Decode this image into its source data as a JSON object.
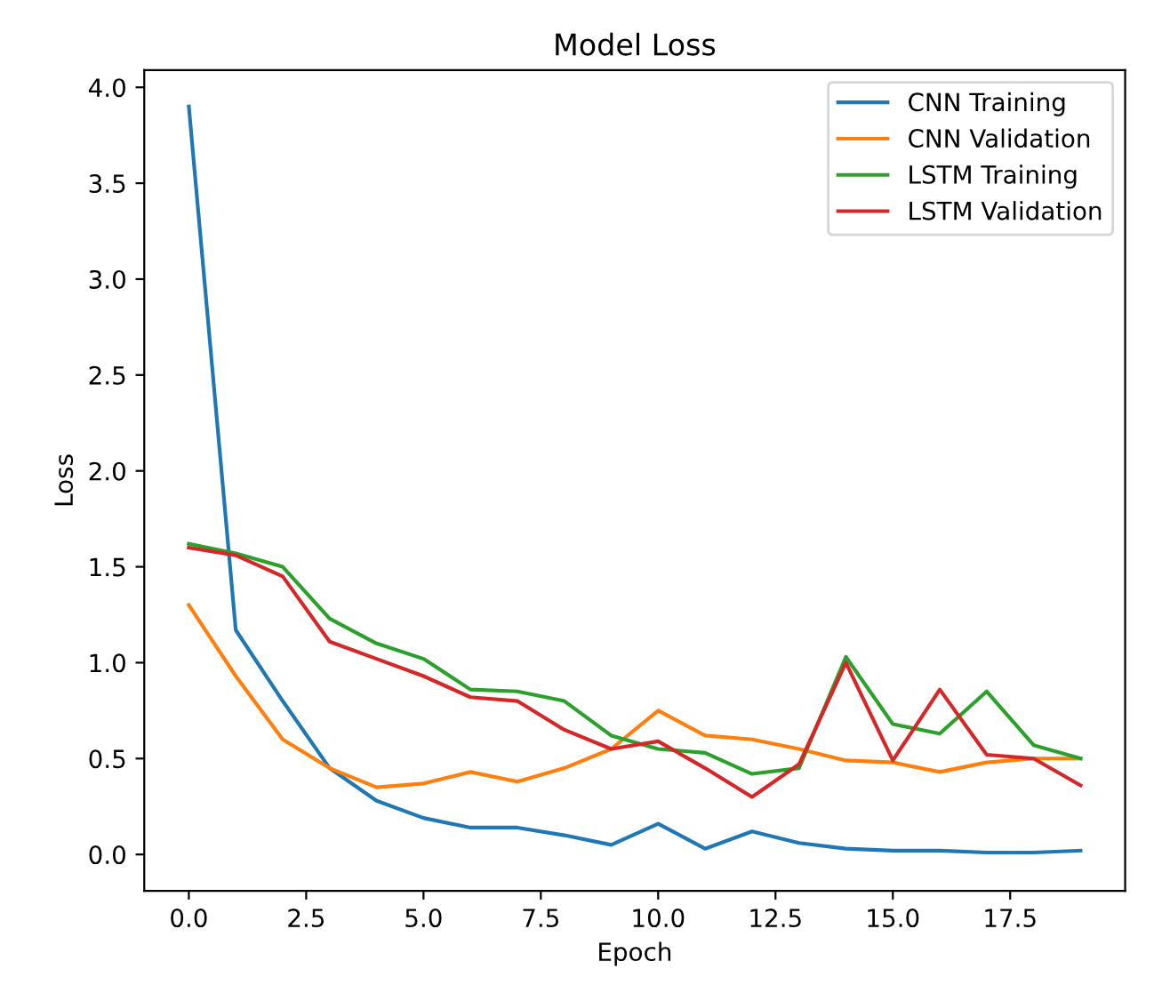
{
  "chart_data": {
    "type": "line",
    "title": "Model Loss",
    "xlabel": "Epoch",
    "ylabel": "Loss",
    "x": [
      0,
      1,
      2,
      3,
      4,
      5,
      6,
      7,
      8,
      9,
      10,
      11,
      12,
      13,
      14,
      15,
      16,
      17,
      18,
      19
    ],
    "series": [
      {
        "name": "CNN Training",
        "color": "#1f77b4",
        "values": [
          3.9,
          1.17,
          0.8,
          0.45,
          0.28,
          0.19,
          0.14,
          0.14,
          0.1,
          0.05,
          0.16,
          0.03,
          0.12,
          0.06,
          0.03,
          0.02,
          0.02,
          0.01,
          0.01,
          0.02
        ]
      },
      {
        "name": "CNN Validation",
        "color": "#ff7f0e",
        "values": [
          1.3,
          0.93,
          0.6,
          0.45,
          0.35,
          0.37,
          0.43,
          0.38,
          0.45,
          0.55,
          0.75,
          0.62,
          0.6,
          0.55,
          0.49,
          0.48,
          0.43,
          0.48,
          0.5,
          0.5
        ]
      },
      {
        "name": "LSTM Training",
        "color": "#2ca02c",
        "values": [
          1.62,
          1.57,
          1.5,
          1.23,
          1.1,
          1.02,
          0.86,
          0.85,
          0.8,
          0.62,
          0.55,
          0.53,
          0.42,
          0.45,
          1.03,
          0.68,
          0.63,
          0.85,
          0.57,
          0.5
        ]
      },
      {
        "name": "LSTM Validation",
        "color": "#d62728",
        "values": [
          1.6,
          1.56,
          1.45,
          1.11,
          1.02,
          0.93,
          0.82,
          0.8,
          0.65,
          0.55,
          0.59,
          0.45,
          0.3,
          0.47,
          1.0,
          0.49,
          0.86,
          0.52,
          0.5,
          0.36
        ]
      }
    ],
    "xlim": [
      -0.95,
      19.95
    ],
    "xticks": [
      {
        "value": 0,
        "label": "0.0"
      },
      2.5,
      {
        "value": 5,
        "label": "5.0"
      },
      7.5,
      {
        "value": 10,
        "label": "10.0"
      },
      12.5,
      {
        "value": 15,
        "label": "15.0"
      },
      17.5
    ],
    "ylim": [
      -0.19,
      4.09
    ],
    "yticks": [
      {
        "value": 0,
        "label": "0.0"
      },
      0.5,
      {
        "value": 1,
        "label": "1.0"
      },
      1.5,
      {
        "value": 2,
        "label": "2.0"
      },
      2.5,
      {
        "value": 3,
        "label": "3.0"
      },
      3.5,
      {
        "value": 4,
        "label": "4.0"
      }
    ],
    "grid": false,
    "legend": "top right",
    "line_style": "solid",
    "marker": "none"
  }
}
